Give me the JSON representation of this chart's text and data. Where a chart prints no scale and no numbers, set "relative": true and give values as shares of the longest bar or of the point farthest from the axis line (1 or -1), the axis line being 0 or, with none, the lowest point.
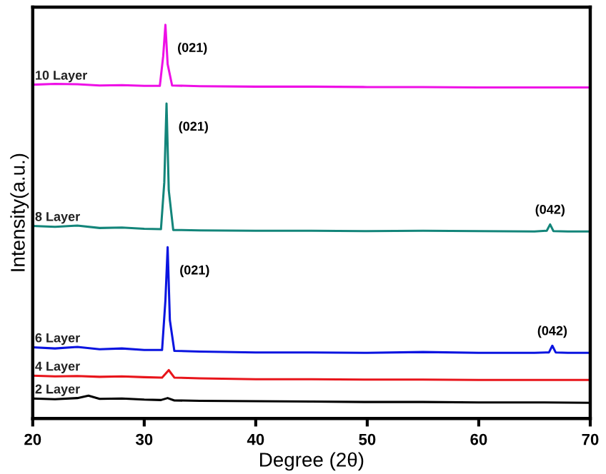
{
  "chart_data": {
    "type": "line",
    "relative": true,
    "xlabel": "Degree (2θ)",
    "ylabel": "Intensity(a.u.)",
    "xlim": [
      20,
      70
    ],
    "xticks": [
      20,
      30,
      40,
      50,
      60,
      70
    ],
    "tick_labels": "x",
    "grid": false,
    "legend": false,
    "marker": "none",
    "line_style": "solid",
    "series": [
      {
        "name": "2 Layer",
        "color": "#000000",
        "x": [
          20,
          22,
          24,
          25,
          26,
          28,
          30,
          31.5,
          32.1,
          32.7,
          35,
          40,
          45,
          50,
          55,
          60,
          65,
          70
        ],
        "values": [
          0.051,
          0.049,
          0.052,
          0.058,
          0.05,
          0.051,
          0.048,
          0.047,
          0.052,
          0.046,
          0.045,
          0.044,
          0.043,
          0.042,
          0.042,
          0.041,
          0.041,
          0.04
        ]
      },
      {
        "name": "4 Layer",
        "color": "#e8151b",
        "x": [
          20,
          22,
          24,
          26,
          28,
          30,
          31.6,
          32.2,
          32.7,
          35,
          40,
          45,
          50,
          55,
          60,
          65,
          70
        ],
        "values": [
          0.109,
          0.107,
          0.108,
          0.106,
          0.107,
          0.105,
          0.104,
          0.123,
          0.104,
          0.102,
          0.1,
          0.1,
          0.099,
          0.099,
          0.098,
          0.098,
          0.098
        ]
      },
      {
        "name": "6 Layer",
        "color": "#0a14e0",
        "x": [
          20,
          22,
          24,
          26,
          28,
          30,
          31.6,
          31.9,
          32.1,
          32.3,
          32.7,
          35,
          40,
          45,
          50,
          55,
          60,
          65,
          66.3,
          66.6,
          66.9,
          68,
          70
        ],
        "values": [
          0.181,
          0.178,
          0.182,
          0.176,
          0.178,
          0.174,
          0.174,
          0.3,
          0.435,
          0.25,
          0.172,
          0.17,
          0.168,
          0.168,
          0.167,
          0.169,
          0.167,
          0.167,
          0.168,
          0.185,
          0.168,
          0.167,
          0.167
        ]
      },
      {
        "name": "8 Layer",
        "color": "#13857a",
        "x": [
          20,
          22,
          24,
          26,
          28,
          30,
          31.5,
          31.8,
          32.0,
          32.2,
          32.6,
          35,
          40,
          45,
          50,
          55,
          60,
          65,
          66.1,
          66.4,
          66.7,
          68,
          70
        ],
        "values": [
          0.489,
          0.487,
          0.49,
          0.484,
          0.485,
          0.482,
          0.481,
          0.6,
          0.8,
          0.58,
          0.479,
          0.478,
          0.477,
          0.477,
          0.476,
          0.477,
          0.476,
          0.475,
          0.477,
          0.493,
          0.476,
          0.475,
          0.475
        ]
      },
      {
        "name": "10 Layer",
        "color": "#ee10e6",
        "x": [
          20,
          22,
          24,
          26,
          28,
          30,
          31.4,
          31.7,
          31.9,
          32.1,
          32.5,
          35,
          40,
          45,
          50,
          55,
          60,
          65,
          70
        ],
        "values": [
          0.848,
          0.85,
          0.849,
          0.846,
          0.847,
          0.845,
          0.845,
          0.92,
          1.0,
          0.9,
          0.846,
          0.844,
          0.843,
          0.843,
          0.842,
          0.842,
          0.841,
          0.841,
          0.841
        ]
      }
    ],
    "annotations": [
      {
        "text": "(021)",
        "x": 31.9,
        "y": 1.0
      },
      {
        "text": "(021)",
        "x": 32.0,
        "y": 0.8
      },
      {
        "text": "(042)",
        "x": 66.4,
        "y": 0.493
      },
      {
        "text": "(021)",
        "x": 32.1,
        "y": 0.435
      },
      {
        "text": "(042)",
        "x": 66.6,
        "y": 0.185
      }
    ]
  }
}
